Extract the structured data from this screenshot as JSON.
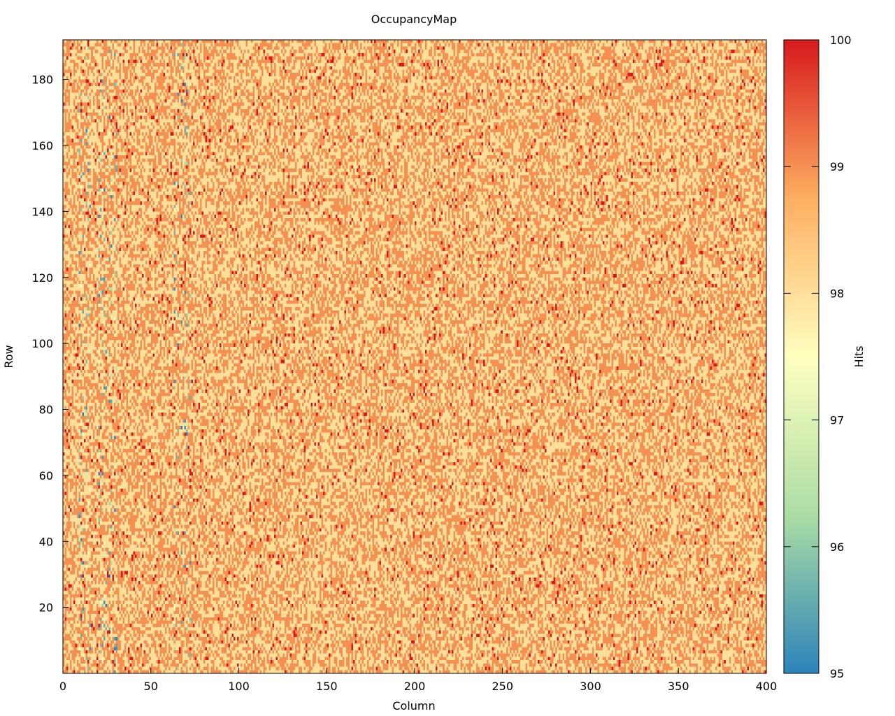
{
  "chart_data": {
    "type": "heatmap",
    "title": "OccupancyMap",
    "xlabel": "Column",
    "ylabel": "Row",
    "colorbar_label": "Hits",
    "xlim": [
      0,
      400
    ],
    "ylim": [
      0,
      192
    ],
    "clim": [
      95,
      100
    ],
    "x_ticks": [
      0,
      50,
      100,
      150,
      200,
      250,
      300,
      350,
      400
    ],
    "y_ticks": [
      20,
      40,
      60,
      80,
      100,
      120,
      140,
      160,
      180
    ],
    "colorbar_ticks": [
      95,
      96,
      97,
      98,
      99,
      100
    ],
    "grid": false,
    "colormap": [
      "#2b83ba",
      "#abdda4",
      "#ffffbf",
      "#fdae61",
      "#d7191c"
    ],
    "data_summary": {
      "columns": 400,
      "rows": 192,
      "typical_values": [
        98,
        99
      ],
      "occasional_high_value": 100,
      "low_value_columns_approx": [
        9,
        10,
        11,
        13,
        14,
        15,
        20,
        21,
        22,
        23,
        24,
        26,
        27,
        29,
        30,
        63,
        65,
        67,
        69,
        70,
        72
      ]
    }
  }
}
